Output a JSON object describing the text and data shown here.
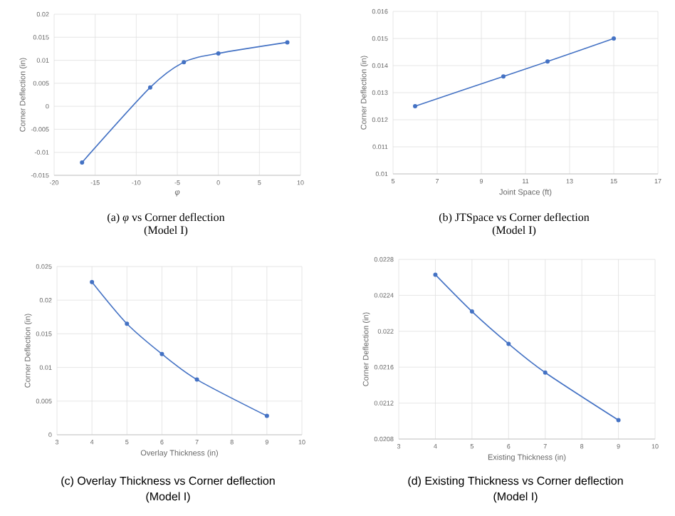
{
  "chart_data": [
    {
      "type": "line",
      "xlabel": "*φ*",
      "ylabel": "Corner Deflection (in)",
      "annotations": [
        "(a)  *φ* vs Corner deflection",
        "(Model I)"
      ],
      "x": [
        -16.6,
        -8.3,
        -4.2,
        0,
        8.4
      ],
      "values": [
        -0.0122,
        0.0041,
        0.0096,
        0.0115,
        0.0139
      ],
      "color": "#4472c4",
      "xlim": [
        -20,
        10
      ],
      "xticks": [
        -20,
        -15,
        -10,
        -5,
        0,
        5,
        10
      ],
      "ylim": [
        -0.015,
        0.02
      ],
      "yticks": [
        -0.015,
        -0.01,
        -0.005,
        0,
        0.005,
        0.01,
        0.015,
        0.02
      ],
      "grid": true,
      "marker": "circle",
      "line_style": "solid"
    },
    {
      "type": "line",
      "xlabel": "Joint Space (ft)",
      "ylabel": "Corner Deflection (in)",
      "annotations": [
        "(b)  JTSpace vs Corner deflection",
        "(Model I)"
      ],
      "x": [
        6,
        10,
        12,
        15
      ],
      "values": [
        0.0125,
        0.0136,
        0.01415,
        0.015
      ],
      "color": "#4472c4",
      "xlim": [
        5,
        17
      ],
      "xticks": [
        5,
        7,
        9,
        11,
        13,
        15,
        17
      ],
      "ylim": [
        0.01,
        0.016
      ],
      "yticks": [
        0.01,
        0.011,
        0.012,
        0.013,
        0.014,
        0.015,
        0.016
      ],
      "grid": true,
      "marker": "circle",
      "line_style": "solid"
    },
    {
      "type": "line",
      "xlabel": "Overlay Thickness (in)",
      "ylabel": "Corner Deflection (in)",
      "annotations": [
        "(c) Overlay Thickness vs Corner deflection",
        "(Model I)"
      ],
      "x": [
        4,
        5,
        6,
        7,
        9
      ],
      "values": [
        0.0227,
        0.0165,
        0.012,
        0.0082,
        0.0028
      ],
      "color": "#4472c4",
      "xlim": [
        3,
        10
      ],
      "xticks": [
        3,
        4,
        5,
        6,
        7,
        8,
        9,
        10
      ],
      "ylim": [
        0,
        0.025
      ],
      "yticks": [
        0,
        0.005,
        0.01,
        0.015,
        0.02,
        0.025
      ],
      "grid": true,
      "marker": "circle",
      "line_style": "solid"
    },
    {
      "type": "line",
      "xlabel": "Existing Thickness (in)",
      "ylabel": "Corner Deflection (in)",
      "annotations": [
        "(d) Existing Thickness vs Corner deflection",
        "(Model I)"
      ],
      "x": [
        4,
        5,
        6,
        7,
        9
      ],
      "values": [
        0.02263,
        0.02222,
        0.02186,
        0.02154,
        0.02101
      ],
      "color": "#4472c4",
      "xlim": [
        3,
        10
      ],
      "xticks": [
        3,
        4,
        5,
        6,
        7,
        8,
        9,
        10
      ],
      "ylim": [
        0.0208,
        0.0228
      ],
      "yticks": [
        0.0208,
        0.0212,
        0.0216,
        0.022,
        0.0224,
        0.0228
      ],
      "grid": true,
      "marker": "circle",
      "line_style": "solid"
    }
  ]
}
